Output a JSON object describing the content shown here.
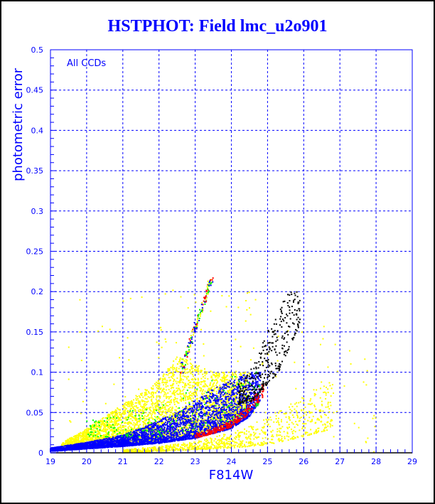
{
  "chart_data": {
    "type": "scatter",
    "title": "HSTPHOT: Field lmc_u2o901",
    "xlabel": "F814W",
    "ylabel": "photometric error",
    "annotation": "All CCDs",
    "xlim": [
      19,
      29
    ],
    "ylim": [
      0,
      0.5
    ],
    "grid": true,
    "x_ticks": [
      "19",
      "20",
      "21",
      "22",
      "23",
      "24",
      "25",
      "26",
      "27",
      "28",
      "29"
    ],
    "y_ticks": [
      "0",
      "0.05",
      "0.1",
      "0.15",
      "0.2",
      "0.25",
      "0.3",
      "0.35",
      "0.4",
      "0.45",
      "0.5"
    ],
    "colors": {
      "axis": "#0000ff",
      "grid": "#0000ff",
      "title": "#0000ff"
    },
    "series": [
      {
        "name": "yellow-main",
        "color": "#ffff00",
        "count": 4200,
        "band": [
          [
            19.3,
            0.003,
            0.012
          ],
          [
            20,
            0.006,
            0.03
          ],
          [
            21,
            0.01,
            0.06
          ],
          [
            22,
            0.015,
            0.09
          ],
          [
            22.5,
            0.02,
            0.12
          ],
          [
            23,
            0.022,
            0.11
          ],
          [
            23.5,
            0.03,
            0.1
          ],
          [
            24,
            0.035,
            0.1
          ],
          [
            24.5,
            0.05,
            0.1
          ]
        ]
      },
      {
        "name": "yellow-faint-branch",
        "color": "#ffff00",
        "count": 900,
        "band": [
          [
            21,
            0.0,
            0.004
          ],
          [
            22,
            0.002,
            0.008
          ],
          [
            23,
            0.004,
            0.014
          ],
          [
            24,
            0.006,
            0.025
          ],
          [
            25,
            0.01,
            0.045
          ],
          [
            26,
            0.02,
            0.07
          ],
          [
            26.8,
            0.03,
            0.1
          ]
        ]
      },
      {
        "name": "yellow-scatter",
        "color": "#ffff00",
        "count": 160,
        "band": [
          [
            19.5,
            0.0,
            0.2
          ],
          [
            22,
            0.05,
            0.22
          ],
          [
            25,
            0.05,
            0.2
          ],
          [
            28,
            0.0,
            0.12
          ]
        ]
      },
      {
        "name": "blue",
        "color": "#0000ff",
        "count": 3800,
        "band": [
          [
            19,
            0.002,
            0.006
          ],
          [
            20,
            0.005,
            0.013
          ],
          [
            21,
            0.008,
            0.022
          ],
          [
            22,
            0.012,
            0.04
          ],
          [
            23,
            0.018,
            0.065
          ],
          [
            23.5,
            0.024,
            0.08
          ],
          [
            24,
            0.03,
            0.09
          ],
          [
            24.5,
            0.045,
            0.1
          ],
          [
            24.8,
            0.065,
            0.1
          ]
        ]
      },
      {
        "name": "red",
        "color": "#ff0000",
        "count": 260,
        "band": [
          [
            23,
            0.018,
            0.024
          ],
          [
            23.5,
            0.024,
            0.03
          ],
          [
            24,
            0.032,
            0.04
          ],
          [
            24.4,
            0.045,
            0.055
          ],
          [
            24.7,
            0.06,
            0.075
          ],
          [
            24.9,
            0.07,
            0.09
          ]
        ]
      },
      {
        "name": "green",
        "color": "#00ff00",
        "count": 180,
        "band": [
          [
            20,
            0.02,
            0.04
          ],
          [
            22,
            0.02,
            0.06
          ],
          [
            23,
            0.03,
            0.09
          ],
          [
            24,
            0.04,
            0.1
          ],
          [
            24.8,
            0.06,
            0.1
          ]
        ]
      },
      {
        "name": "black",
        "color": "#000000",
        "count": 330,
        "band": [
          [
            24.2,
            0.06,
            0.085
          ],
          [
            24.6,
            0.065,
            0.11
          ],
          [
            25,
            0.085,
            0.15
          ],
          [
            25.3,
            0.1,
            0.18
          ],
          [
            25.6,
            0.13,
            0.2
          ],
          [
            25.9,
            0.16,
            0.2
          ]
        ]
      },
      {
        "name": "streak",
        "color": "#00aa00",
        "count": 160,
        "mixed_colors": [
          "#ff0000",
          "#00ff00",
          "#0000ff",
          "#ffff00"
        ],
        "line": [
          [
            22.6,
            0.1
          ],
          [
            23.45,
            0.215
          ]
        ]
      }
    ]
  }
}
